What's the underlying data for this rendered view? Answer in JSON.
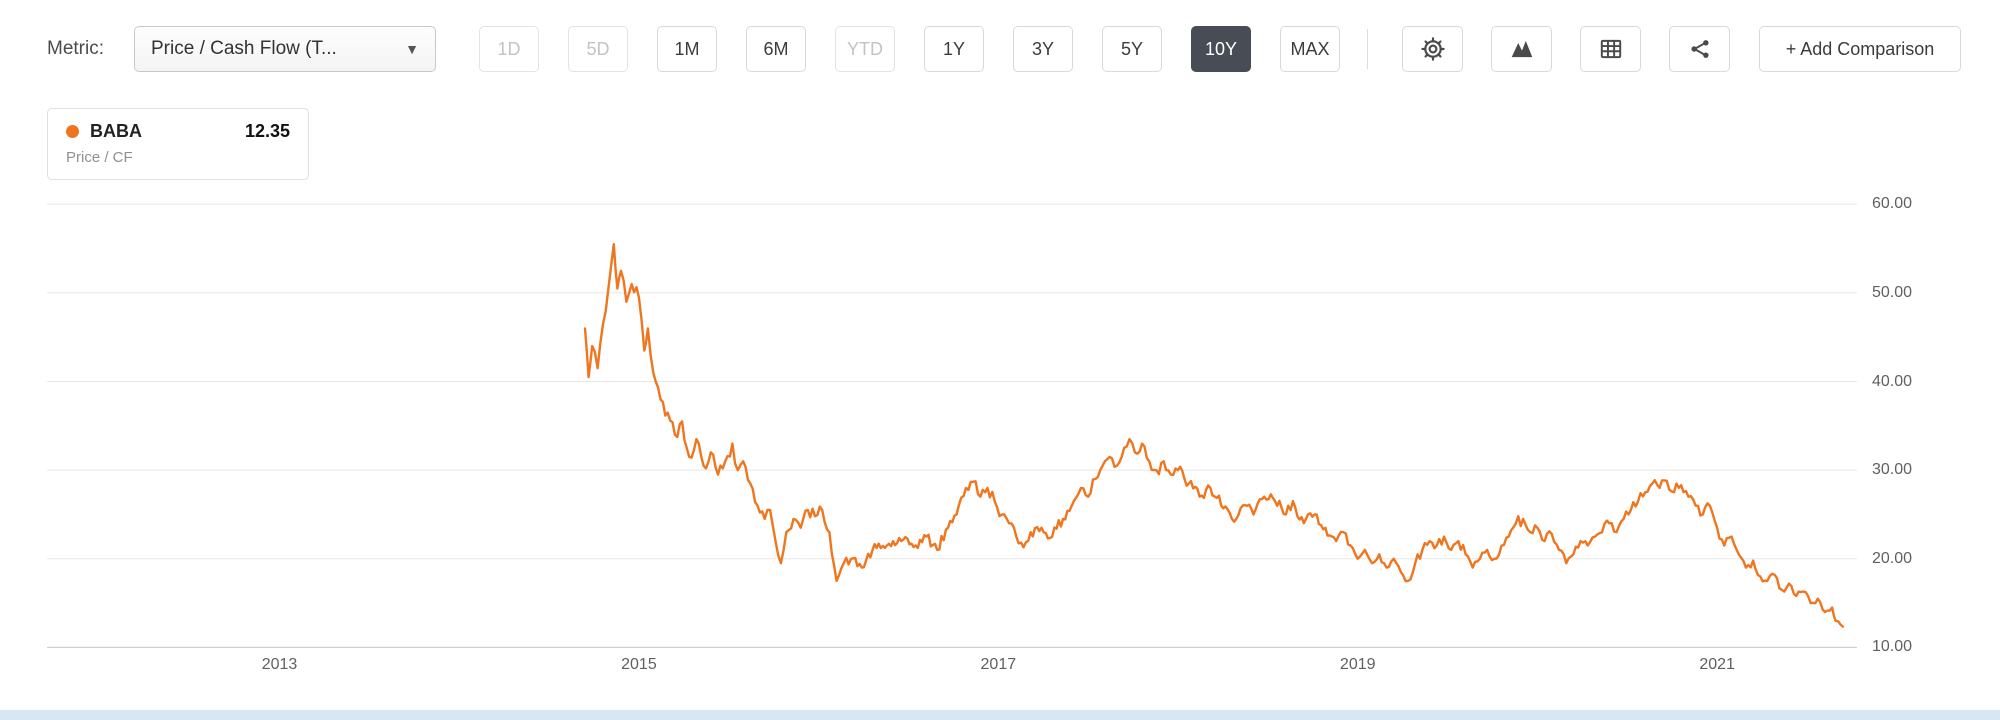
{
  "toolbar": {
    "metric_label": "Metric:",
    "metric_dropdown": {
      "value": "Price / Cash Flow (T...",
      "arrow": "▼"
    },
    "range_buttons": [
      {
        "label": "1D",
        "state": "disabled"
      },
      {
        "label": "5D",
        "state": "disabled"
      },
      {
        "label": "1M",
        "state": "normal"
      },
      {
        "label": "6M",
        "state": "normal"
      },
      {
        "label": "YTD",
        "state": "disabled"
      },
      {
        "label": "1Y",
        "state": "normal"
      },
      {
        "label": "3Y",
        "state": "normal"
      },
      {
        "label": "5Y",
        "state": "normal"
      },
      {
        "label": "10Y",
        "state": "selected"
      },
      {
        "label": "MAX",
        "state": "normal"
      }
    ],
    "icon_buttons": [
      "settings-icon",
      "chart-type-icon",
      "table-icon",
      "share-icon"
    ],
    "add_comparison_label": "+ Add Comparison"
  },
  "legend": {
    "symbol_color": "#f0751f",
    "ticker": "BABA",
    "value": "12.35",
    "metric_name": "Price / CF"
  },
  "colors": {
    "series": "#f0751f",
    "selected_button_bg": "#474c55",
    "gridline": "#e8e8e8",
    "baseline": "#cfcfcf"
  },
  "chart_data": {
    "type": "line",
    "title": "BABA Price / Cash Flow (TTM)",
    "xlabel": "",
    "ylabel": "",
    "grid": "horizontal",
    "legend_position": "top-left",
    "x_range": [
      2011.706,
      2021.78
    ],
    "y_range": [
      10,
      61.5
    ],
    "x_ticks": [
      2013,
      2015,
      2017,
      2019,
      2021
    ],
    "x_tick_labels": [
      "2013",
      "2015",
      "2017",
      "2019",
      "2021"
    ],
    "y_ticks": [
      10,
      20,
      30,
      40,
      50,
      60
    ],
    "y_tick_labels": [
      "10.00",
      "20.00",
      "30.00",
      "40.00",
      "50.00",
      "60.00"
    ],
    "last_value": 12.35,
    "series": [
      {
        "name": "BABA Price / CF",
        "color": "#f0751f",
        "points": [
          [
            2014.7,
            46.0
          ],
          [
            2014.72,
            40.5
          ],
          [
            2014.74,
            44.0
          ],
          [
            2014.77,
            41.5
          ],
          [
            2014.8,
            46.5
          ],
          [
            2014.83,
            50.5
          ],
          [
            2014.86,
            55.5
          ],
          [
            2014.88,
            50.5
          ],
          [
            2014.9,
            52.5
          ],
          [
            2014.93,
            49.0
          ],
          [
            2014.96,
            51.0
          ],
          [
            2015.0,
            49.5
          ],
          [
            2015.03,
            43.5
          ],
          [
            2015.05,
            46.0
          ],
          [
            2015.08,
            41.0
          ],
          [
            2015.12,
            38.0
          ],
          [
            2015.16,
            36.5
          ],
          [
            2015.2,
            34.0
          ],
          [
            2015.24,
            35.5
          ],
          [
            2015.28,
            31.5
          ],
          [
            2015.32,
            33.5
          ],
          [
            2015.36,
            30.5
          ],
          [
            2015.4,
            32.0
          ],
          [
            2015.44,
            29.5
          ],
          [
            2015.48,
            31.0
          ],
          [
            2015.52,
            33.0
          ],
          [
            2015.55,
            30.0
          ],
          [
            2015.58,
            31.0
          ],
          [
            2015.62,
            28.5
          ],
          [
            2015.66,
            26.0
          ],
          [
            2015.7,
            24.5
          ],
          [
            2015.73,
            25.5
          ],
          [
            2015.76,
            22.0
          ],
          [
            2015.79,
            19.5
          ],
          [
            2015.82,
            23.0
          ],
          [
            2015.86,
            24.5
          ],
          [
            2015.9,
            23.5
          ],
          [
            2015.94,
            25.5
          ],
          [
            2015.98,
            24.8
          ],
          [
            2016.02,
            25.5
          ],
          [
            2016.06,
            23.0
          ],
          [
            2016.1,
            17.5
          ],
          [
            2016.14,
            19.5
          ],
          [
            2016.18,
            20.0
          ],
          [
            2016.24,
            19.0
          ],
          [
            2016.3,
            21.0
          ],
          [
            2016.38,
            21.5
          ],
          [
            2016.46,
            22.0
          ],
          [
            2016.54,
            21.5
          ],
          [
            2016.6,
            22.5
          ],
          [
            2016.66,
            21.0
          ],
          [
            2016.72,
            23.5
          ],
          [
            2016.78,
            26.0
          ],
          [
            2016.82,
            28.0
          ],
          [
            2016.86,
            28.7
          ],
          [
            2016.9,
            27.0
          ],
          [
            2016.94,
            28.0
          ],
          [
            2016.98,
            26.5
          ],
          [
            2017.02,
            25.0
          ],
          [
            2017.06,
            24.0
          ],
          [
            2017.1,
            22.5
          ],
          [
            2017.14,
            21.3
          ],
          [
            2017.18,
            23.0
          ],
          [
            2017.24,
            23.5
          ],
          [
            2017.3,
            22.5
          ],
          [
            2017.36,
            24.5
          ],
          [
            2017.42,
            26.5
          ],
          [
            2017.46,
            28.0
          ],
          [
            2017.5,
            27.0
          ],
          [
            2017.54,
            29.0
          ],
          [
            2017.58,
            30.5
          ],
          [
            2017.62,
            31.5
          ],
          [
            2017.66,
            30.5
          ],
          [
            2017.7,
            32.5
          ],
          [
            2017.73,
            33.5
          ],
          [
            2017.76,
            32.0
          ],
          [
            2017.8,
            33.0
          ],
          [
            2017.84,
            31.0
          ],
          [
            2017.88,
            30.0
          ],
          [
            2017.92,
            31.0
          ],
          [
            2017.96,
            29.5
          ],
          [
            2018.0,
            30.0
          ],
          [
            2018.06,
            28.5
          ],
          [
            2018.12,
            27.0
          ],
          [
            2018.18,
            28.0
          ],
          [
            2018.24,
            26.0
          ],
          [
            2018.3,
            24.5
          ],
          [
            2018.36,
            26.0
          ],
          [
            2018.42,
            25.0
          ],
          [
            2018.48,
            27.0
          ],
          [
            2018.54,
            26.5
          ],
          [
            2018.6,
            25.0
          ],
          [
            2018.64,
            26.5
          ],
          [
            2018.7,
            24.0
          ],
          [
            2018.76,
            25.0
          ],
          [
            2018.82,
            23.5
          ],
          [
            2018.88,
            22.0
          ],
          [
            2018.92,
            23.0
          ],
          [
            2018.96,
            21.5
          ],
          [
            2019.0,
            20.0
          ],
          [
            2019.04,
            21.0
          ],
          [
            2019.08,
            19.5
          ],
          [
            2019.12,
            20.5
          ],
          [
            2019.16,
            19.0
          ],
          [
            2019.2,
            20.0
          ],
          [
            2019.24,
            18.5
          ],
          [
            2019.28,
            17.5
          ],
          [
            2019.32,
            19.5
          ],
          [
            2019.36,
            21.0
          ],
          [
            2019.4,
            22.0
          ],
          [
            2019.44,
            21.5
          ],
          [
            2019.48,
            22.5
          ],
          [
            2019.52,
            21.0
          ],
          [
            2019.56,
            22.0
          ],
          [
            2019.6,
            20.5
          ],
          [
            2019.64,
            19.0
          ],
          [
            2019.68,
            20.0
          ],
          [
            2019.72,
            21.0
          ],
          [
            2019.76,
            20.0
          ],
          [
            2019.8,
            21.5
          ],
          [
            2019.84,
            22.5
          ],
          [
            2019.88,
            24.0
          ],
          [
            2019.92,
            24.5
          ],
          [
            2019.96,
            23.0
          ],
          [
            2020.0,
            23.5
          ],
          [
            2020.04,
            22.0
          ],
          [
            2020.08,
            22.8
          ],
          [
            2020.12,
            21.0
          ],
          [
            2020.16,
            19.5
          ],
          [
            2020.2,
            20.5
          ],
          [
            2020.24,
            22.0
          ],
          [
            2020.28,
            21.5
          ],
          [
            2020.32,
            22.5
          ],
          [
            2020.36,
            23.0
          ],
          [
            2020.4,
            24.0
          ],
          [
            2020.44,
            23.0
          ],
          [
            2020.48,
            24.5
          ],
          [
            2020.52,
            25.5
          ],
          [
            2020.56,
            26.5
          ],
          [
            2020.6,
            27.5
          ],
          [
            2020.64,
            28.5
          ],
          [
            2020.68,
            28.0
          ],
          [
            2020.72,
            28.8
          ],
          [
            2020.76,
            27.5
          ],
          [
            2020.8,
            28.3
          ],
          [
            2020.84,
            27.0
          ],
          [
            2020.88,
            26.0
          ],
          [
            2020.92,
            25.0
          ],
          [
            2020.96,
            26.0
          ],
          [
            2021.0,
            23.5
          ],
          [
            2021.04,
            21.5
          ],
          [
            2021.08,
            22.5
          ],
          [
            2021.12,
            20.5
          ],
          [
            2021.16,
            19.0
          ],
          [
            2021.2,
            19.8
          ],
          [
            2021.24,
            18.0
          ],
          [
            2021.28,
            17.5
          ],
          [
            2021.32,
            18.2
          ],
          [
            2021.36,
            16.5
          ],
          [
            2021.4,
            17.2
          ],
          [
            2021.44,
            15.8
          ],
          [
            2021.48,
            16.3
          ],
          [
            2021.52,
            15.0
          ],
          [
            2021.56,
            15.5
          ],
          [
            2021.6,
            14.0
          ],
          [
            2021.64,
            14.5
          ],
          [
            2021.66,
            13.0
          ],
          [
            2021.7,
            12.35
          ]
        ]
      }
    ]
  }
}
